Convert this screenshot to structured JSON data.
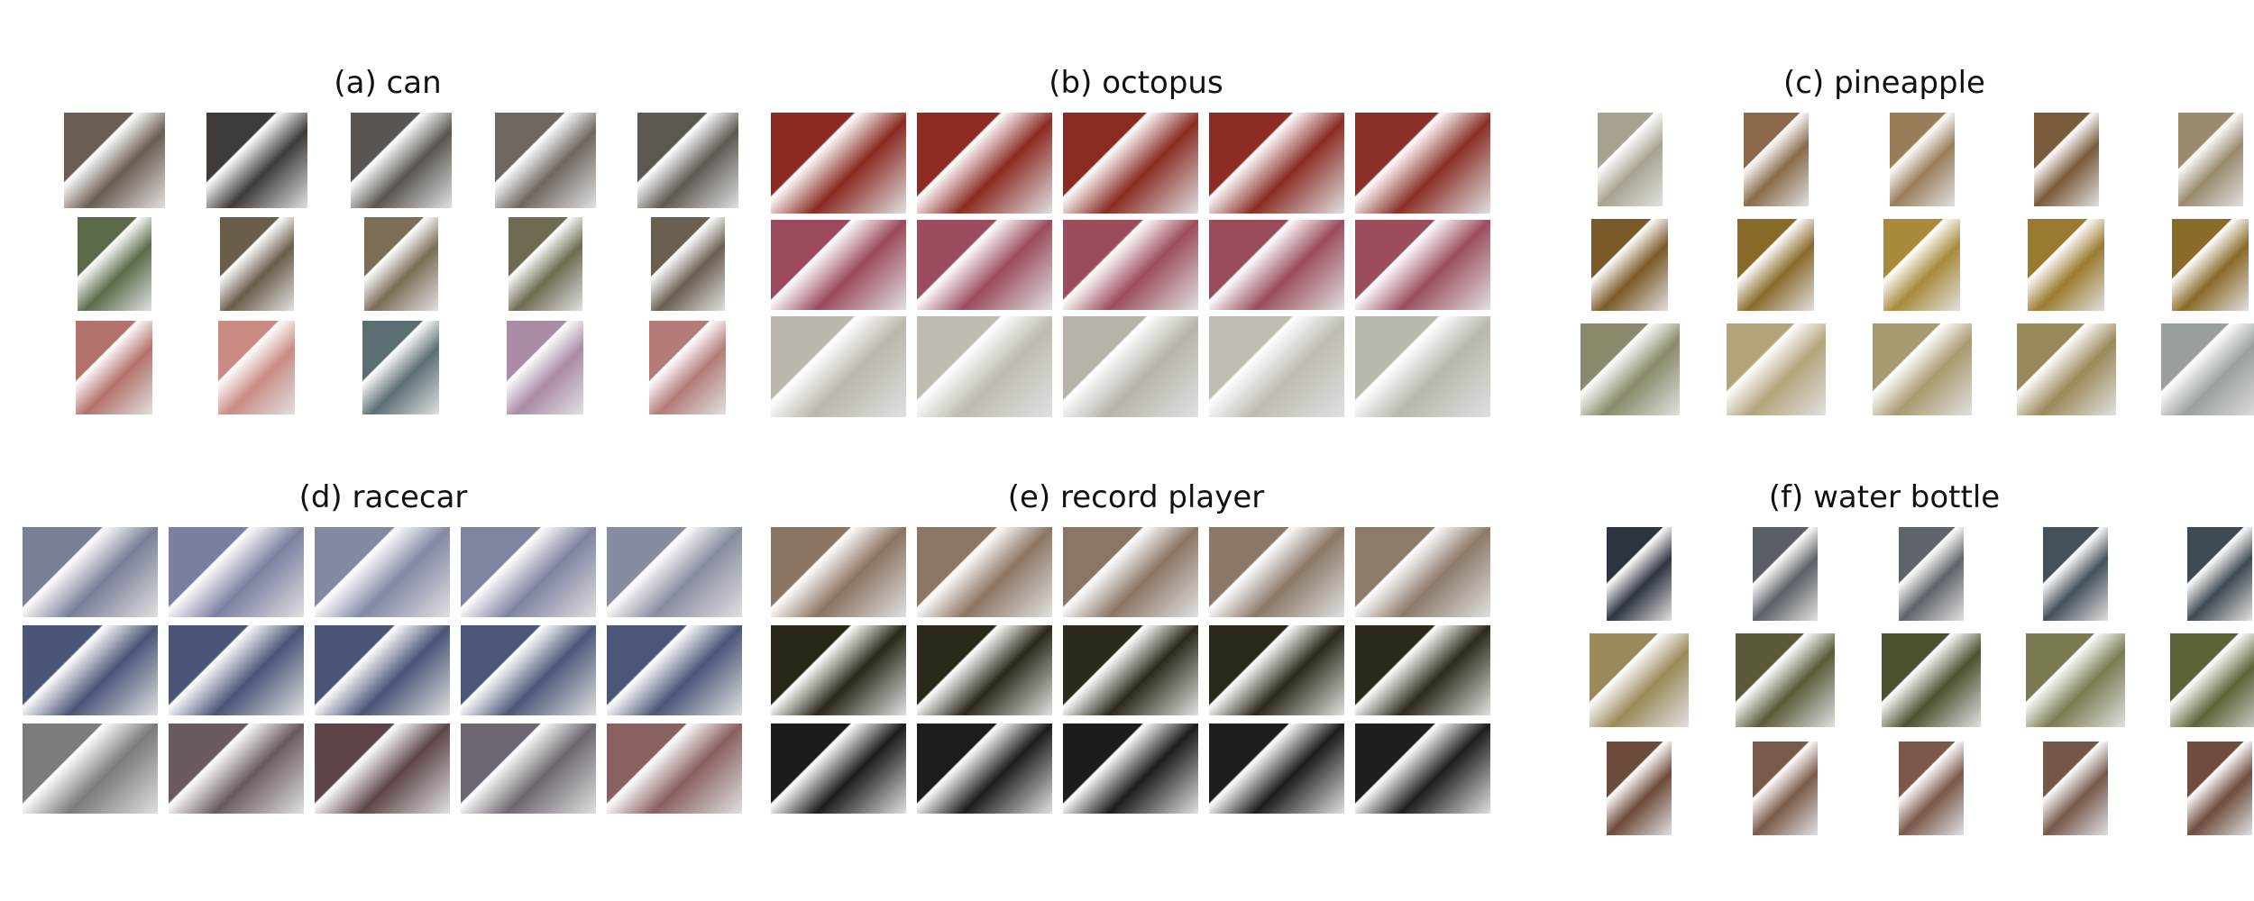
{
  "figure": {
    "panels": [
      {
        "title": "(a) can",
        "rows": [
          {
            "colors": [
              "#6b5d52",
              "#3f3b38",
              "#5a5550",
              "#6e6660",
              "#5e5852"
            ]
          },
          {
            "colors": [
              "#5b6b4a",
              "#6a5d4a",
              "#7b6d56",
              "#6e6b52",
              "#6a6050"
            ]
          },
          {
            "colors": [
              "#b2716a",
              "#c98b84",
              "#5b6f73",
              "#a98ba5",
              "#b37c78"
            ]
          }
        ]
      },
      {
        "title": "(b) octopus",
        "rows": [
          {
            "colors": [
              "#8a2a22",
              "#8c2b23",
              "#8a2c24",
              "#8b2d25",
              "#8a2f27"
            ]
          },
          {
            "colors": [
              "#9a4a5c",
              "#9b4c5e",
              "#9c4d5d",
              "#9a4c5c",
              "#9b4d5e"
            ]
          },
          {
            "colors": [
              "#bcb7ac",
              "#bfbbb1",
              "#b8b4aa",
              "#c0bcb2",
              "#b9b6ac"
            ]
          }
        ]
      },
      {
        "title": "(c) pineapple",
        "rows": [
          {
            "colors": [
              "#a8a390",
              "#8a6a4a",
              "#9a7e5a",
              "#7a5a3a",
              "#9a8a6e"
            ]
          },
          {
            "colors": [
              "#7a5a28",
              "#8a6a2a",
              "#a88a3a",
              "#9a7a2e",
              "#8a6a28"
            ]
          },
          {
            "colors": [
              "#8a8a6a",
              "#b3a47a",
              "#a89a70",
              "#9a8a5a",
              "#9aa0a0"
            ]
          }
        ]
      },
      {
        "title": "(d) racecar",
        "rows": [
          {
            "colors": [
              "#7a7f98",
              "#7c80a0",
              "#8388a5",
              "#7f83a0",
              "#888ca0"
            ]
          },
          {
            "colors": [
              "#4a5578",
              "#4a5578",
              "#4a5578",
              "#4c577a",
              "#4b5679"
            ]
          },
          {
            "colors": [
              "#7b7b7d",
              "#6a5a5e",
              "#5e4648",
              "#6e6670",
              "#8a6060"
            ]
          }
        ]
      },
      {
        "title": "(e) record player",
        "rows": [
          {
            "colors": [
              "#8a7462",
              "#8c7664",
              "#8a7666",
              "#8b7868",
              "#8c7a6a"
            ]
          },
          {
            "colors": [
              "#2a2818",
              "#2b2919",
              "#2c2a1a",
              "#2b2919",
              "#2c2a1b"
            ]
          },
          {
            "colors": [
              "#1c1c1e",
              "#1d1d1f",
              "#1c1c1e",
              "#1d1d1f",
              "#1e1e20"
            ]
          }
        ]
      },
      {
        "title": "(f) water bottle",
        "rows": [
          {
            "colors": [
              "#2e3440",
              "#5a6066",
              "#5e646a",
              "#44505a",
              "#3e4a52"
            ]
          },
          {
            "colors": [
              "#9a8a5a",
              "#5a5a3a",
              "#4a5230",
              "#7a7a52",
              "#5e6238"
            ]
          },
          {
            "colors": [
              "#6e4a3a",
              "#7a5a4a",
              "#7a584a",
              "#76584a",
              "#6e4c3e"
            ]
          }
        ]
      }
    ]
  }
}
